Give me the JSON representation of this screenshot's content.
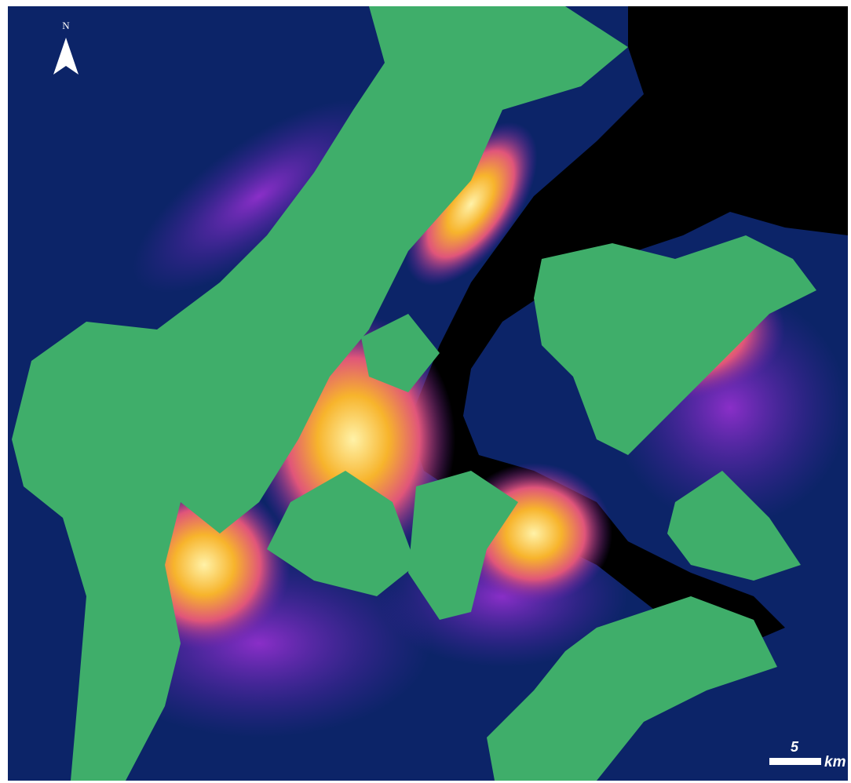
{
  "north_label": "N",
  "scale_bar": {
    "value": 5,
    "unit": "km"
  }
}
